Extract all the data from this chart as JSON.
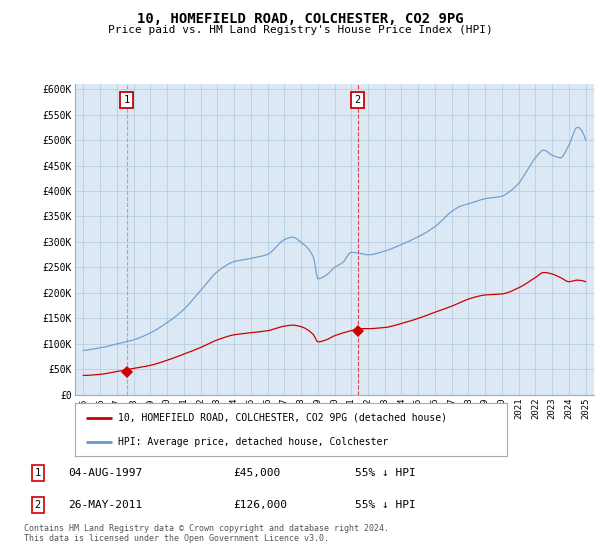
{
  "title": "10, HOMEFIELD ROAD, COLCHESTER, CO2 9PG",
  "subtitle": "Price paid vs. HM Land Registry's House Price Index (HPI)",
  "ylabel_ticks": [
    "£0",
    "£50K",
    "£100K",
    "£150K",
    "£200K",
    "£250K",
    "£300K",
    "£350K",
    "£400K",
    "£450K",
    "£500K",
    "£550K",
    "£600K"
  ],
  "ytick_values": [
    0,
    50000,
    100000,
    150000,
    200000,
    250000,
    300000,
    350000,
    400000,
    450000,
    500000,
    550000,
    600000
  ],
  "xlim": [
    1994.5,
    2025.5
  ],
  "ylim": [
    0,
    610000
  ],
  "sale1_x": 1997.58,
  "sale1_y": 45000,
  "sale2_x": 2011.38,
  "sale2_y": 126000,
  "legend_line1": "10, HOMEFIELD ROAD, COLCHESTER, CO2 9PG (detached house)",
  "legend_line2": "HPI: Average price, detached house, Colchester",
  "footnote": "Contains HM Land Registry data © Crown copyright and database right 2024.\nThis data is licensed under the Open Government Licence v3.0.",
  "price_color": "#cc0000",
  "hpi_color": "#6699cc",
  "bg_color": "#ffffff",
  "plot_bg": "#dce9f5",
  "grid_color": "#b8cfe0"
}
